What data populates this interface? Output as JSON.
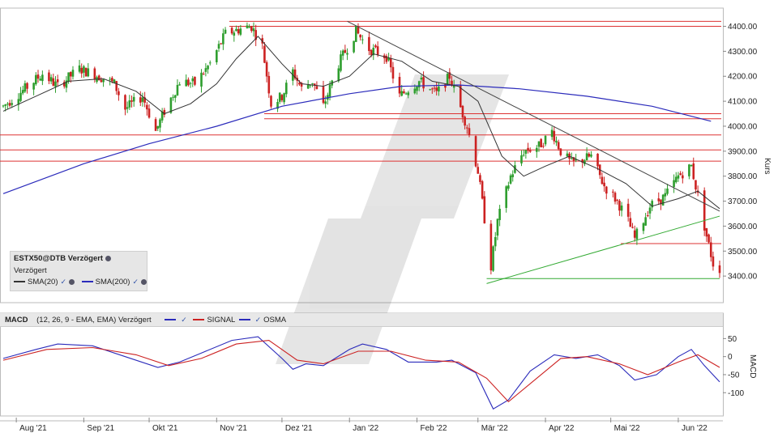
{
  "chart_data": [
    {
      "type": "candlestick",
      "instrument": "ESTX50@DTB Verzögert",
      "subtitle": "Verzögert",
      "ylabel": "Kurs",
      "ylim": [
        3300,
        4460
      ],
      "yticks": [
        "4400.00",
        "4300.00",
        "4200.00",
        "4100.00",
        "4000.00",
        "3900.00",
        "3800.00",
        "3700.00",
        "3600.00",
        "3500.00",
        "3400.00"
      ],
      "xticks": [
        "Aug '21",
        "Sep '21",
        "Okt '21",
        "Nov '21",
        "Dez '21",
        "Jan '22",
        "Feb '22",
        "Mär '22",
        "Apr '22",
        "Mai '22",
        "Jun '22"
      ],
      "x_start": "2021-07-26",
      "x_end": "2022-06-20",
      "price_path": [
        [
          "2021-07-26",
          4080
        ],
        [
          "2021-08-05",
          4150
        ],
        [
          "2021-08-13",
          4210
        ],
        [
          "2021-08-20",
          4160
        ],
        [
          "2021-08-30",
          4230
        ],
        [
          "2021-09-08",
          4200
        ],
        [
          "2021-09-15",
          4170
        ],
        [
          "2021-09-20",
          4070
        ],
        [
          "2021-09-28",
          4120
        ],
        [
          "2021-10-04",
          3980
        ],
        [
          "2021-10-08",
          4060
        ],
        [
          "2021-10-15",
          4180
        ],
        [
          "2021-10-22",
          4170
        ],
        [
          "2021-10-29",
          4250
        ],
        [
          "2021-11-05",
          4370
        ],
        [
          "2021-11-12",
          4390
        ],
        [
          "2021-11-17",
          4400
        ],
        [
          "2021-11-22",
          4320
        ],
        [
          "2021-11-26",
          4090
        ],
        [
          "2021-12-01",
          4120
        ],
        [
          "2021-12-06",
          4220
        ],
        [
          "2021-12-10",
          4150
        ],
        [
          "2021-12-15",
          4180
        ],
        [
          "2021-12-20",
          4080
        ],
        [
          "2021-12-27",
          4250
        ],
        [
          "2022-01-04",
          4380
        ],
        [
          "2022-01-10",
          4310
        ],
        [
          "2022-01-18",
          4280
        ],
        [
          "2022-01-24",
          4120
        ],
        [
          "2022-01-28",
          4150
        ],
        [
          "2022-02-02",
          4180
        ],
        [
          "2022-02-10",
          4130
        ],
        [
          "2022-02-16",
          4200
        ],
        [
          "2022-02-24",
          4000
        ],
        [
          "2022-03-01",
          3820
        ],
        [
          "2022-03-07",
          3440
        ],
        [
          "2022-03-10",
          3620
        ],
        [
          "2022-03-16",
          3800
        ],
        [
          "2022-03-22",
          3900
        ],
        [
          "2022-03-29",
          3920
        ],
        [
          "2022-04-04",
          3980
        ],
        [
          "2022-04-08",
          3900
        ],
        [
          "2022-04-13",
          3850
        ],
        [
          "2022-04-22",
          3880
        ],
        [
          "2022-04-28",
          3760
        ],
        [
          "2022-05-04",
          3700
        ],
        [
          "2022-05-09",
          3620
        ],
        [
          "2022-05-12",
          3550
        ],
        [
          "2022-05-19",
          3680
        ],
        [
          "2022-05-26",
          3720
        ],
        [
          "2022-06-01",
          3800
        ],
        [
          "2022-06-07",
          3840
        ],
        [
          "2022-06-10",
          3720
        ],
        [
          "2022-06-14",
          3560
        ],
        [
          "2022-06-17",
          3450
        ],
        [
          "2022-06-20",
          3430
        ]
      ],
      "sma20_path": [
        [
          "2021-07-26",
          4060
        ],
        [
          "2021-08-10",
          4120
        ],
        [
          "2021-08-25",
          4180
        ],
        [
          "2021-09-10",
          4190
        ],
        [
          "2021-09-25",
          4140
        ],
        [
          "2021-10-08",
          4050
        ],
        [
          "2021-10-20",
          4090
        ],
        [
          "2021-11-01",
          4170
        ],
        [
          "2021-11-10",
          4270
        ],
        [
          "2021-11-20",
          4360
        ],
        [
          "2021-12-01",
          4250
        ],
        [
          "2021-12-10",
          4170
        ],
        [
          "2021-12-20",
          4160
        ],
        [
          "2022-01-01",
          4200
        ],
        [
          "2022-01-12",
          4290
        ],
        [
          "2022-01-25",
          4260
        ],
        [
          "2022-02-08",
          4180
        ],
        [
          "2022-02-20",
          4160
        ],
        [
          "2022-03-01",
          4100
        ],
        [
          "2022-03-12",
          3880
        ],
        [
          "2022-03-22",
          3800
        ],
        [
          "2022-04-01",
          3840
        ],
        [
          "2022-04-12",
          3880
        ],
        [
          "2022-04-25",
          3830
        ],
        [
          "2022-05-08",
          3770
        ],
        [
          "2022-05-20",
          3680
        ],
        [
          "2022-06-01",
          3710
        ],
        [
          "2022-06-10",
          3740
        ],
        [
          "2022-06-20",
          3670
        ]
      ],
      "sma200_path": [
        [
          "2021-07-26",
          3730
        ],
        [
          "2021-09-01",
          3850
        ],
        [
          "2021-10-01",
          3930
        ],
        [
          "2021-11-01",
          4000
        ],
        [
          "2021-12-01",
          4080
        ],
        [
          "2022-01-01",
          4130
        ],
        [
          "2022-01-25",
          4160
        ],
        [
          "2022-02-20",
          4165
        ],
        [
          "2022-03-20",
          4150
        ],
        [
          "2022-04-20",
          4120
        ],
        [
          "2022-05-20",
          4080
        ],
        [
          "2022-06-16",
          4020
        ]
      ],
      "horizontal_levels_red": [
        4420,
        4400,
        4050,
        4030,
        3965,
        3905,
        3860,
        3530
      ],
      "lines": [
        {
          "color": "#444444",
          "from": [
            "2021-12-31",
            4420
          ],
          "to": [
            "2022-06-20",
            3660
          ]
        },
        {
          "color": "#33aa33",
          "from": [
            "2022-03-05",
            3370
          ],
          "to": [
            "2022-06-20",
            3640
          ]
        },
        {
          "color": "#33aa33",
          "from": [
            "2022-03-05",
            3390
          ],
          "to": [
            "2022-06-20",
            3390
          ]
        }
      ],
      "legend": [
        {
          "name": "SMA(20)",
          "color": "#333333"
        },
        {
          "name": "SMA(200)",
          "color": "#2b2bbb"
        }
      ],
      "colors": {
        "up": "#2e9e2e",
        "down": "#cc2222",
        "level": "#dd3333",
        "sma20": "#333333",
        "sma200": "#2b2bbb"
      }
    },
    {
      "type": "line",
      "title": "MACD",
      "params": "(12, 26, 9 - EMA, EMA) Verzögert",
      "ylabel": "MACD",
      "ylim": [
        -160,
        80
      ],
      "yticks": [
        "50",
        "0",
        "-50",
        "-100"
      ],
      "legend": [
        {
          "name": "SIGNAL",
          "color": "#cc2222"
        },
        {
          "name": "OSMA",
          "color": "#2b2bbb"
        }
      ],
      "series": [
        {
          "name": "MACD",
          "color": "#2b2bbb",
          "values": [
            [
              "2021-07-26",
              -5
            ],
            [
              "2021-08-10",
              20
            ],
            [
              "2021-08-20",
              35
            ],
            [
              "2021-09-05",
              30
            ],
            [
              "2021-09-20",
              0
            ],
            [
              "2021-10-05",
              -30
            ],
            [
              "2021-10-15",
              -15
            ],
            [
              "2021-10-25",
              10
            ],
            [
              "2021-11-08",
              45
            ],
            [
              "2021-11-20",
              55
            ],
            [
              "2021-12-01",
              -5
            ],
            [
              "2021-12-06",
              -35
            ],
            [
              "2021-12-12",
              -20
            ],
            [
              "2021-12-20",
              -25
            ],
            [
              "2022-01-01",
              20
            ],
            [
              "2022-01-07",
              35
            ],
            [
              "2022-01-18",
              20
            ],
            [
              "2022-01-28",
              -15
            ],
            [
              "2022-02-10",
              -15
            ],
            [
              "2022-02-17",
              -10
            ],
            [
              "2022-02-28",
              -45
            ],
            [
              "2022-03-08",
              -145
            ],
            [
              "2022-03-15",
              -120
            ],
            [
              "2022-03-25",
              -40
            ],
            [
              "2022-04-05",
              5
            ],
            [
              "2022-04-15",
              -5
            ],
            [
              "2022-04-25",
              5
            ],
            [
              "2022-05-05",
              -25
            ],
            [
              "2022-05-12",
              -65
            ],
            [
              "2022-05-22",
              -50
            ],
            [
              "2022-06-01",
              0
            ],
            [
              "2022-06-07",
              20
            ],
            [
              "2022-06-13",
              -25
            ],
            [
              "2022-06-20",
              -70
            ]
          ]
        },
        {
          "name": "SIGNAL",
          "color": "#cc2222",
          "values": [
            [
              "2021-07-26",
              -10
            ],
            [
              "2021-08-15",
              20
            ],
            [
              "2021-09-05",
              25
            ],
            [
              "2021-09-25",
              5
            ],
            [
              "2021-10-10",
              -25
            ],
            [
              "2021-10-25",
              -5
            ],
            [
              "2021-11-10",
              35
            ],
            [
              "2021-11-25",
              45
            ],
            [
              "2021-12-08",
              -10
            ],
            [
              "2021-12-20",
              -20
            ],
            [
              "2022-01-05",
              15
            ],
            [
              "2022-01-20",
              15
            ],
            [
              "2022-02-05",
              -10
            ],
            [
              "2022-02-20",
              -15
            ],
            [
              "2022-03-05",
              -60
            ],
            [
              "2022-03-15",
              -125
            ],
            [
              "2022-03-28",
              -60
            ],
            [
              "2022-04-08",
              -5
            ],
            [
              "2022-04-20",
              0
            ],
            [
              "2022-05-05",
              -20
            ],
            [
              "2022-05-18",
              -50
            ],
            [
              "2022-06-01",
              -15
            ],
            [
              "2022-06-10",
              5
            ],
            [
              "2022-06-20",
              -30
            ]
          ]
        }
      ]
    }
  ]
}
